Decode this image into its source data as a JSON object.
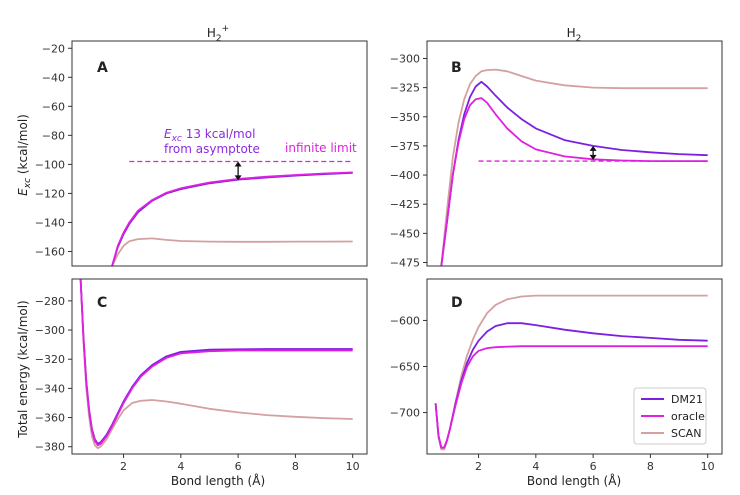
{
  "chart_data": [
    {
      "panel": "A",
      "type": "line",
      "title_main": "H",
      "title_sub": "2",
      "title_sup": "+",
      "xlabel": "",
      "ylabel_main": "E",
      "ylabel_sub": "xc",
      "ylabel_rest": " (kcal/mol)",
      "xlim": [
        0.2,
        10.5
      ],
      "ylim": [
        -170,
        -15
      ],
      "yticks": [
        -20,
        -40,
        -60,
        -80,
        -100,
        -120,
        -140,
        -160
      ],
      "series": [
        {
          "name": "DM21",
          "color": "#7b1fe0",
          "x": [
            1.6,
            1.8,
            2.0,
            2.2,
            2.5,
            3.0,
            3.5,
            4.0,
            5.0,
            6.0,
            7.0,
            8.0,
            9.0,
            10.0
          ],
          "y": [
            -170,
            -157,
            -148,
            -141,
            -133,
            -125,
            -120,
            -117,
            -113,
            -110.5,
            -109,
            -107.7,
            -106.7,
            -105.8
          ]
        },
        {
          "name": "oracle",
          "color": "#e020e0",
          "x": [
            1.6,
            1.8,
            2.0,
            2.2,
            2.5,
            3.0,
            3.5,
            4.0,
            5.0,
            6.0,
            7.0,
            8.0,
            9.0,
            10.0
          ],
          "y": [
            -170,
            -156,
            -147,
            -140,
            -132,
            -124.5,
            -119.5,
            -116.5,
            -112.5,
            -110,
            -108.5,
            -107.3,
            -106.3,
            -105.5
          ]
        },
        {
          "name": "SCAN",
          "color": "#d4a0a0",
          "x": [
            1.6,
            1.8,
            2.0,
            2.2,
            2.5,
            3.0,
            3.5,
            4.0,
            5.0,
            6.0,
            7.0,
            8.0,
            9.0,
            10.0
          ],
          "y": [
            -170,
            -162,
            -156,
            -153,
            -151.5,
            -151,
            -152,
            -152.8,
            -153.2,
            -153.3,
            -153.3,
            -153.2,
            -153.2,
            -153.1
          ]
        }
      ],
      "hline": {
        "y": -98,
        "x": [
          2.2,
          10.0
        ],
        "color": "#e020e0"
      },
      "arrow": {
        "x": 6.0,
        "y1": -98,
        "y2": -111
      },
      "annotations": {
        "exc_main": "E",
        "exc_sub": "xc",
        "exc_rest": " 13 kcal/mol",
        "line2": "from asymptote",
        "limit": "infinite limit"
      },
      "label": "A"
    },
    {
      "panel": "B",
      "type": "line",
      "title": "H",
      "title_sub": "2",
      "xlim": [
        0.2,
        10.5
      ],
      "ylim": [
        -478,
        -285
      ],
      "yticks": [
        -300,
        -325,
        -350,
        -375,
        -400,
        -425,
        -450,
        -475
      ],
      "series": [
        {
          "name": "DM21",
          "color": "#7b1fe0",
          "x": [
            0.7,
            0.9,
            1.1,
            1.3,
            1.5,
            1.7,
            1.9,
            2.1,
            2.3,
            2.6,
            3.0,
            3.5,
            4.0,
            5.0,
            6.0,
            7.0,
            8.0,
            9.0,
            10.0
          ],
          "y": [
            -478,
            -440,
            -400,
            -370,
            -348,
            -333,
            -324,
            -320,
            -324,
            -332,
            -342,
            -352,
            -360,
            -370,
            -375,
            -378.5,
            -380.5,
            -382,
            -383
          ]
        },
        {
          "name": "oracle",
          "color": "#e020e0",
          "x": [
            0.7,
            0.9,
            1.1,
            1.3,
            1.5,
            1.7,
            1.9,
            2.1,
            2.3,
            2.6,
            3.0,
            3.5,
            4.0,
            5.0,
            6.0,
            7.0,
            8.0,
            9.0,
            10.0
          ],
          "y": [
            -478,
            -440,
            -400,
            -372,
            -352,
            -340,
            -335,
            -334,
            -338,
            -348,
            -360,
            -371,
            -378,
            -384,
            -386.5,
            -387.5,
            -388,
            -388,
            -388
          ]
        },
        {
          "name": "SCAN",
          "color": "#d4a0a0",
          "x": [
            0.7,
            0.9,
            1.1,
            1.3,
            1.5,
            1.7,
            1.9,
            2.1,
            2.3,
            2.6,
            3.0,
            3.5,
            4.0,
            5.0,
            6.0,
            7.0,
            8.0,
            9.0,
            10.0
          ],
          "y": [
            -478,
            -430,
            -385,
            -355,
            -335,
            -322,
            -315,
            -311,
            -310,
            -309.5,
            -311,
            -315,
            -319,
            -323,
            -325,
            -325.5,
            -325.5,
            -325.5,
            -325.5
          ]
        }
      ],
      "hline": {
        "y": -388,
        "x": [
          2.0,
          10.0
        ],
        "color": "#e020e0"
      },
      "arrow": {
        "x": 6.0,
        "y1": -375,
        "y2": -387
      },
      "label": "B"
    },
    {
      "panel": "C",
      "type": "line",
      "xlabel": "Bond length (Å)",
      "ylabel": "Total energy (kcal/mol)",
      "xlim": [
        0.2,
        10.5
      ],
      "ylim": [
        -385,
        -265
      ],
      "yticks": [
        -280,
        -300,
        -320,
        -340,
        -360,
        -380
      ],
      "xticks": [
        2,
        4,
        6,
        8,
        10
      ],
      "series": [
        {
          "name": "DM21",
          "color": "#7b1fe0",
          "x": [
            0.5,
            0.6,
            0.7,
            0.8,
            0.9,
            1.0,
            1.1,
            1.2,
            1.4,
            1.6,
            1.8,
            2.0,
            2.3,
            2.6,
            3.0,
            3.5,
            4.0,
            5.0,
            6.0,
            7.0,
            8.0,
            9.0,
            10.0
          ],
          "y": [
            -265,
            -305,
            -335,
            -355,
            -368,
            -375,
            -378,
            -377,
            -372,
            -365,
            -357,
            -349,
            -339,
            -331,
            -324,
            -318,
            -315,
            -313.5,
            -313.2,
            -313,
            -313,
            -313,
            -313
          ]
        },
        {
          "name": "oracle",
          "color": "#e020e0",
          "x": [
            0.5,
            0.6,
            0.7,
            0.8,
            0.9,
            1.0,
            1.1,
            1.2,
            1.4,
            1.6,
            1.8,
            2.0,
            2.3,
            2.6,
            3.0,
            3.5,
            4.0,
            5.0,
            6.0,
            7.0,
            8.0,
            9.0,
            10.0
          ],
          "y": [
            -265,
            -306,
            -336,
            -356,
            -369,
            -376,
            -379,
            -378,
            -373,
            -366,
            -358,
            -350,
            -340,
            -332,
            -325,
            -319,
            -316,
            -314.5,
            -314,
            -314,
            -314,
            -314,
            -314
          ]
        },
        {
          "name": "SCAN",
          "color": "#d4a0a0",
          "x": [
            0.5,
            0.6,
            0.7,
            0.8,
            0.9,
            1.0,
            1.1,
            1.2,
            1.4,
            1.6,
            1.8,
            2.0,
            2.3,
            2.6,
            3.0,
            3.5,
            4.0,
            5.0,
            6.0,
            7.0,
            8.0,
            9.0,
            10.0
          ],
          "y": [
            -265,
            -308,
            -340,
            -360,
            -373,
            -379,
            -381,
            -380,
            -375,
            -368,
            -361,
            -355,
            -350,
            -348.5,
            -348,
            -349,
            -350.5,
            -354,
            -356.5,
            -358.3,
            -359.5,
            -360.4,
            -361
          ]
        }
      ],
      "label": "C"
    },
    {
      "panel": "D",
      "type": "line",
      "xlabel": "Bond length (Å)",
      "xlim": [
        0.2,
        10.5
      ],
      "ylim": [
        -745,
        -555
      ],
      "yticks": [
        -600,
        -650,
        -700
      ],
      "xticks": [
        2,
        4,
        6,
        8,
        10
      ],
      "series": [
        {
          "name": "DM21",
          "color": "#7b1fe0",
          "x": [
            0.5,
            0.6,
            0.7,
            0.8,
            0.9,
            1.0,
            1.2,
            1.4,
            1.6,
            1.8,
            2.0,
            2.3,
            2.6,
            3.0,
            3.5,
            4.0,
            5.0,
            6.0,
            7.0,
            8.0,
            9.0,
            10.0
          ],
          "y": [
            -690,
            -725,
            -738,
            -738,
            -730,
            -718,
            -690,
            -665,
            -646,
            -632,
            -622,
            -612,
            -606,
            -603,
            -603,
            -605,
            -610,
            -614,
            -617,
            -619,
            -621,
            -622
          ]
        },
        {
          "name": "oracle",
          "color": "#e020e0",
          "x": [
            0.5,
            0.6,
            0.7,
            0.8,
            0.9,
            1.0,
            1.2,
            1.4,
            1.6,
            1.8,
            2.0,
            2.3,
            2.6,
            3.0,
            3.5,
            4.0,
            5.0,
            6.0,
            7.0,
            8.0,
            9.0,
            10.0
          ],
          "y": [
            -690,
            -725,
            -738,
            -738,
            -730,
            -718,
            -692,
            -668,
            -650,
            -639,
            -633,
            -630,
            -629,
            -628.5,
            -628,
            -628,
            -628,
            -628,
            -628,
            -628,
            -628,
            -628
          ]
        },
        {
          "name": "SCAN",
          "color": "#d4a0a0",
          "x": [
            0.5,
            0.6,
            0.7,
            0.8,
            0.9,
            1.0,
            1.2,
            1.4,
            1.6,
            1.8,
            2.0,
            2.3,
            2.6,
            3.0,
            3.5,
            4.0,
            5.0,
            6.0,
            7.0,
            8.0,
            9.0,
            10.0
          ],
          "y": [
            -690,
            -727,
            -740,
            -740,
            -731,
            -718,
            -688,
            -660,
            -638,
            -621,
            -607,
            -592,
            -583,
            -577,
            -574,
            -573,
            -573,
            -573,
            -573,
            -573,
            -573,
            -573
          ]
        }
      ],
      "legend": {
        "placement": "bottom-right",
        "entries": [
          {
            "name": "DM21",
            "color": "#7b1fe0"
          },
          {
            "name": "oracle",
            "color": "#e020e0"
          },
          {
            "name": "SCAN",
            "color": "#d4a0a0"
          }
        ]
      },
      "label": "D"
    }
  ]
}
